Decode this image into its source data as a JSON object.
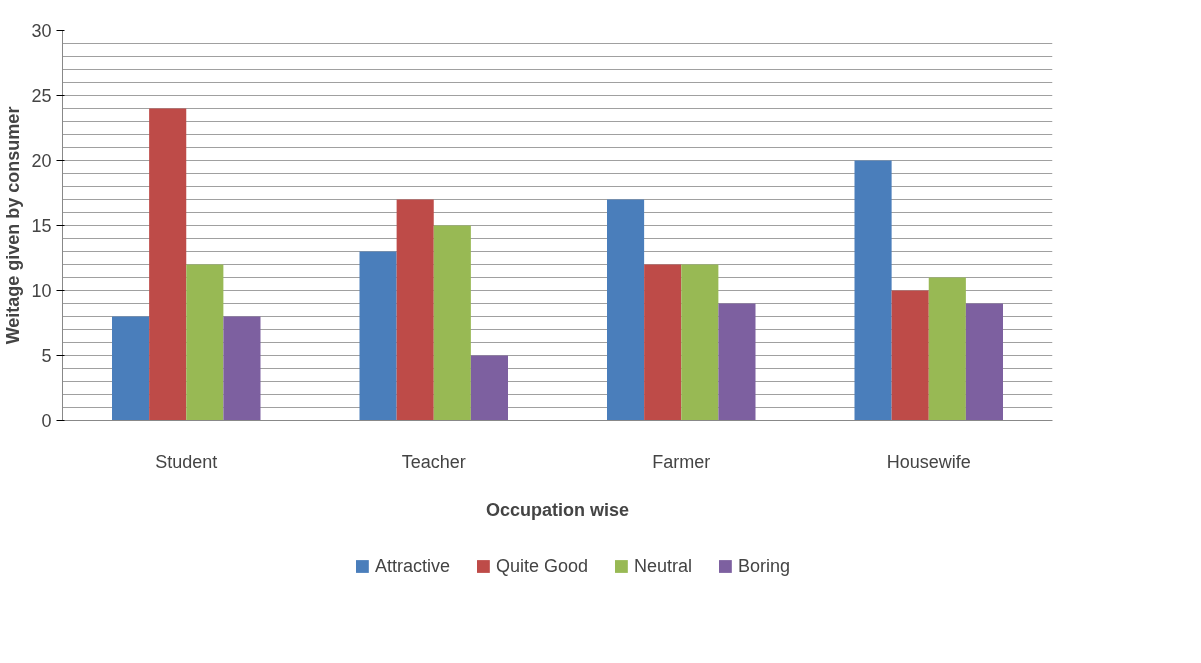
{
  "chart_data": {
    "type": "bar",
    "xlabel": "Occupation wise",
    "ylabel": "Weitage given by consumer",
    "categories": [
      "Student",
      "Teacher",
      "Farmer",
      "Housewife"
    ],
    "series": [
      {
        "name": "Attractive",
        "color": "#4a7ebb",
        "values": [
          8,
          13,
          17,
          20
        ]
      },
      {
        "name": "Quite Good",
        "color": "#be4b48",
        "values": [
          24,
          17,
          12,
          10
        ]
      },
      {
        "name": "Neutral",
        "color": "#98b954",
        "values": [
          12,
          15,
          12,
          11
        ]
      },
      {
        "name": "Boring",
        "color": "#7d60a0",
        "values": [
          8,
          5,
          9,
          9
        ]
      }
    ],
    "ylim": [
      0,
      30
    ],
    "yticks": [
      0,
      {
        "value": 1,
        "label": null
      },
      {
        "value": 2,
        "label": null
      },
      {
        "value": 3,
        "label": null
      },
      {
        "value": 4,
        "label": null
      },
      5,
      {
        "value": 6,
        "label": null
      },
      {
        "value": 7,
        "label": null
      },
      {
        "value": 8,
        "label": null
      },
      {
        "value": 9,
        "label": null
      },
      10,
      {
        "value": 11,
        "label": null
      },
      {
        "value": 12,
        "label": null
      },
      {
        "value": 13,
        "label": null
      },
      {
        "value": 14,
        "label": null
      },
      15,
      {
        "value": 16,
        "label": null
      },
      {
        "value": 17,
        "label": null
      },
      {
        "value": 18,
        "label": null
      },
      {
        "value": 19,
        "label": null
      },
      20,
      {
        "value": 21,
        "label": null
      },
      {
        "value": 22,
        "label": null
      },
      {
        "value": 23,
        "label": null
      },
      {
        "value": 24,
        "label": null
      },
      25,
      {
        "value": 26,
        "label": null
      },
      {
        "value": 27,
        "label": null
      },
      {
        "value": 28,
        "label": null
      },
      {
        "value": 29,
        "label": null
      },
      30
    ],
    "grid": "y",
    "legend": "bottom"
  }
}
